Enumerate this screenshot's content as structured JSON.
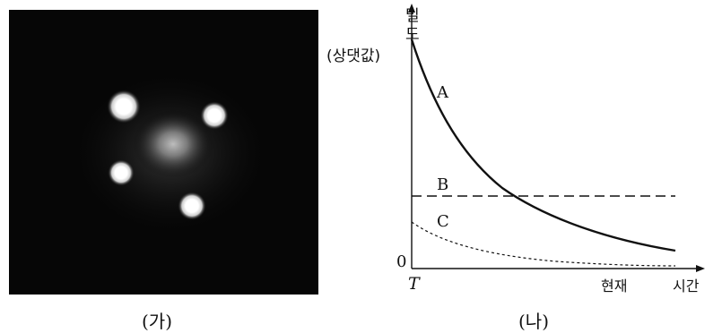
{
  "photo": {
    "caption": "(가)"
  },
  "graph": {
    "caption": "(나)",
    "y_axis_label_line1": "밀",
    "y_axis_label_line2": "도",
    "y_axis_label_line3": "(상댓값)",
    "origin_label": "0",
    "x_tick_start": "T",
    "x_tick_now": "현재",
    "x_axis_label": "시간",
    "curve_A_label": "A",
    "curve_B_label": "B",
    "curve_C_label": "C"
  }
}
